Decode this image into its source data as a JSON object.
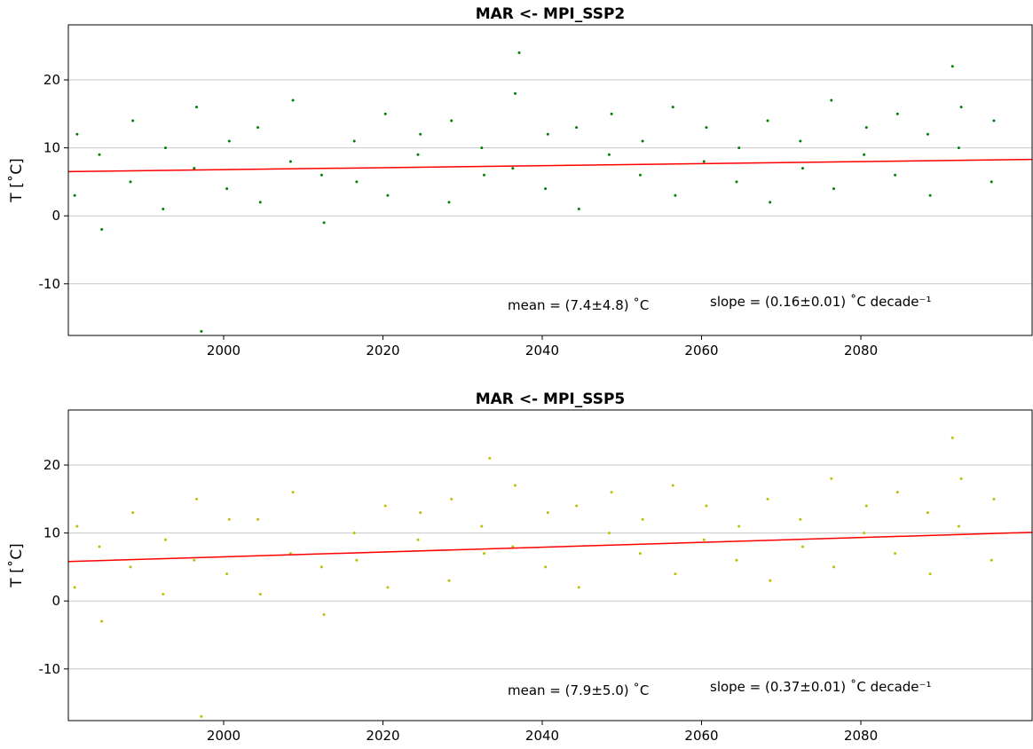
{
  "chart_data": [
    {
      "type": "scatter",
      "title": "MAR <- MPI_SSP2",
      "y_label": "T [˚C]",
      "annotations": [
        "mean = (7.4±4.8) ˚C",
        "slope = (0.16±0.01) ˚C decade⁻¹"
      ],
      "xlim": [
        1980.5,
        2101.5
      ],
      "xticks": [
        2000,
        2020,
        2040,
        2060,
        2080
      ],
      "ylim": [
        -17.6,
        28.1
      ],
      "yticks": [
        -10,
        0,
        10,
        20
      ],
      "grid": true,
      "series": [
        {
          "color": "#008000",
          "x": [
            1981.3,
            1981.6,
            1984.4,
            1984.7,
            1988.3,
            1988.6,
            1992.4,
            1992.7,
            1996.3,
            1996.6,
            2000.4,
            2000.7,
            2004.3,
            2004.6,
            2008.4,
            2008.7,
            2012.3,
            2012.6,
            2016.4,
            2016.7,
            2020.3,
            2020.6,
            2024.4,
            2024.7,
            2028.3,
            2028.6,
            2032.4,
            2032.7,
            2036.3,
            2036.6,
            2040.4,
            2040.7,
            2044.3,
            2044.6,
            2048.4,
            2048.7,
            2052.3,
            2052.6,
            2056.4,
            2056.7,
            2060.3,
            2060.6,
            2064.4,
            2064.7,
            2068.3,
            2068.6,
            2072.4,
            2072.7,
            2076.3,
            2076.6,
            2080.4,
            2080.7,
            2084.3,
            2084.6,
            2088.4,
            2088.7,
            2092.3,
            2092.6,
            2096.4,
            2096.7,
            1997.2,
            2037.1,
            2091.5
          ],
          "values": [
            3,
            12,
            9,
            -2,
            5,
            14,
            1,
            10,
            7,
            16,
            4,
            11,
            13,
            2,
            8,
            17,
            6,
            -1,
            11,
            5,
            15,
            3,
            9,
            12,
            2,
            14,
            10,
            6,
            7,
            18,
            4,
            12,
            13,
            1,
            9,
            15,
            6,
            11,
            16,
            3,
            8,
            13,
            5,
            10,
            14,
            2,
            11,
            7,
            17,
            4,
            9,
            13,
            6,
            15,
            12,
            3,
            10,
            16,
            5,
            14,
            -17,
            24,
            22
          ]
        },
        {
          "color": "#ff0000",
          "line": true,
          "x": [
            1980.5,
            2101.5
          ],
          "values": [
            6.5,
            8.3
          ]
        }
      ]
    },
    {
      "type": "scatter",
      "title": "MAR <- MPI_SSP5",
      "y_label": "T [˚C]",
      "annotations": [
        "mean = (7.9±5.0) ˚C",
        "slope = (0.37±0.01) ˚C decade⁻¹"
      ],
      "xlim": [
        1980.5,
        2101.5
      ],
      "xticks": [
        2000,
        2020,
        2040,
        2060,
        2080
      ],
      "ylim": [
        -17.6,
        28.1
      ],
      "yticks": [
        -10,
        0,
        10,
        20
      ],
      "grid": true,
      "series": [
        {
          "color": "#bfbf00",
          "x": [
            1981.3,
            1981.6,
            1984.4,
            1984.7,
            1988.3,
            1988.6,
            1992.4,
            1992.7,
            1996.3,
            1996.6,
            2000.4,
            2000.7,
            2004.3,
            2004.6,
            2008.4,
            2008.7,
            2012.3,
            2012.6,
            2016.4,
            2016.7,
            2020.3,
            2020.6,
            2024.4,
            2024.7,
            2028.3,
            2028.6,
            2032.4,
            2032.7,
            2036.3,
            2036.6,
            2040.4,
            2040.7,
            2044.3,
            2044.6,
            2048.4,
            2048.7,
            2052.3,
            2052.6,
            2056.4,
            2056.7,
            2060.3,
            2060.6,
            2064.4,
            2064.7,
            2068.3,
            2068.6,
            2072.4,
            2072.7,
            2076.3,
            2076.6,
            2080.4,
            2080.7,
            2084.3,
            2084.6,
            2088.4,
            2088.7,
            2092.3,
            2092.6,
            2096.4,
            2096.7,
            1997.2,
            2033.4,
            2091.5
          ],
          "values": [
            2,
            11,
            8,
            -3,
            5,
            13,
            1,
            9,
            6,
            15,
            4,
            12,
            12,
            1,
            7,
            16,
            5,
            -2,
            10,
            6,
            14,
            2,
            9,
            13,
            3,
            15,
            11,
            7,
            8,
            17,
            5,
            13,
            14,
            2,
            10,
            16,
            7,
            12,
            17,
            4,
            9,
            14,
            6,
            11,
            15,
            3,
            12,
            8,
            18,
            5,
            10,
            14,
            7,
            16,
            13,
            4,
            11,
            18,
            6,
            15,
            -17,
            21,
            24
          ]
        },
        {
          "color": "#ff0000",
          "line": true,
          "x": [
            1980.5,
            2101.5
          ],
          "values": [
            5.8,
            10.1
          ]
        }
      ]
    }
  ]
}
